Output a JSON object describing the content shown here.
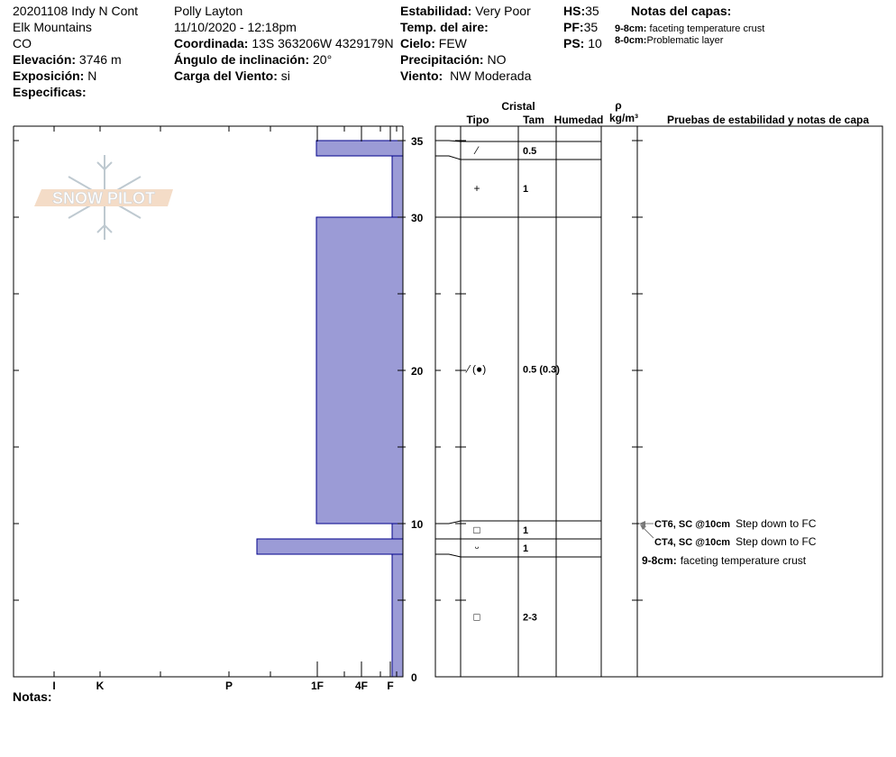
{
  "header": {
    "col1": {
      "pit_name": "20201108 Indy N Cont",
      "range": "Elk Mountains",
      "state": "CO",
      "elevation_label": "Elevación:",
      "elevation_value": "3746 m",
      "aspect_label": "Exposición:",
      "aspect_value": "N",
      "specifics_label": "Especificas:"
    },
    "col2": {
      "observer": "Polly Layton",
      "datetime": "11/10/2020 - 12:18pm",
      "coord_label": "Coordinada:",
      "coord_value": "13S 363206W 4329179N",
      "slope_label": "Ángulo de inclinación:",
      "slope_value": "20°",
      "windload_label": "Carga del Viento:",
      "windload_value": "si"
    },
    "col3": {
      "stability_label": "Estabilidad:",
      "stability_value": "Very Poor",
      "airtemp_label": "Temp. del aire:",
      "sky_label": "Cielo:",
      "sky_value": "FEW",
      "precip_label": "Precipitación:",
      "precip_value": "NO",
      "wind_label": "Viento:",
      "wind_value": "NW Moderada"
    },
    "col4": {
      "hs_label": "HS:",
      "hs_value": "35",
      "pf_label": "PF:",
      "pf_value": "35",
      "ps_label": "PS:",
      "ps_value": "10"
    },
    "layer_notes": {
      "title": "Notas del capas:",
      "items": [
        {
          "range": "9-8cm:",
          "text": "faceting temperature crust"
        },
        {
          "range": "8-0cm:",
          "text": "Problematic layer"
        }
      ]
    }
  },
  "logo": {
    "text": "SNOW PILOT"
  },
  "table_header": {
    "crystal": "Cristal",
    "type": "Tipo",
    "size": "Tam",
    "moisture": "Humedad",
    "rho": "ρ",
    "density_unit": "kg/m³",
    "tests": "Pruebas de estabilidad y notas de capa"
  },
  "notes_label": "Notas:",
  "chart_data": {
    "type": "bar",
    "orientation": "horizontal",
    "xlabel": "",
    "ylabel": "",
    "ylim": [
      0,
      35
    ],
    "y_ticks": [
      "0",
      "10",
      "20",
      "30",
      "35"
    ],
    "x_ticks": [
      "I",
      "K",
      "P",
      "1F",
      "4F",
      "F"
    ],
    "bar_color": "#9b9bd6",
    "bar_edge_color": "#00008b",
    "layers": [
      {
        "top": 35,
        "bottom": 34,
        "hardness": "1F",
        "crystal_type": "⁄",
        "crystal_size": "0.5"
      },
      {
        "top": 34,
        "bottom": 30,
        "hardness": "F",
        "crystal_type": "+",
        "crystal_size": "1"
      },
      {
        "top": 30,
        "bottom": 10,
        "hardness": "1F",
        "crystal_type": "⁄ (●)",
        "crystal_size": "0.5 (0.3)"
      },
      {
        "top": 10,
        "bottom": 9,
        "hardness": "F",
        "crystal_type": "□",
        "crystal_size": "1"
      },
      {
        "top": 9,
        "bottom": 8,
        "hardness": "P+",
        "crystal_type": "ᵕ",
        "crystal_size": "1"
      },
      {
        "top": 8,
        "bottom": 0,
        "hardness": "F",
        "crystal_type": "□",
        "crystal_size": "2-3"
      }
    ],
    "stability_tests": [
      {
        "depth": 10,
        "test": "CT6, SC @10cm",
        "comment": "Step down to FC"
      },
      {
        "depth": 10,
        "test": "CT4, SC @10cm",
        "comment": "Step down to FC"
      }
    ],
    "layer_note": {
      "range": "9-8cm:",
      "text": "faceting temperature crust"
    }
  }
}
